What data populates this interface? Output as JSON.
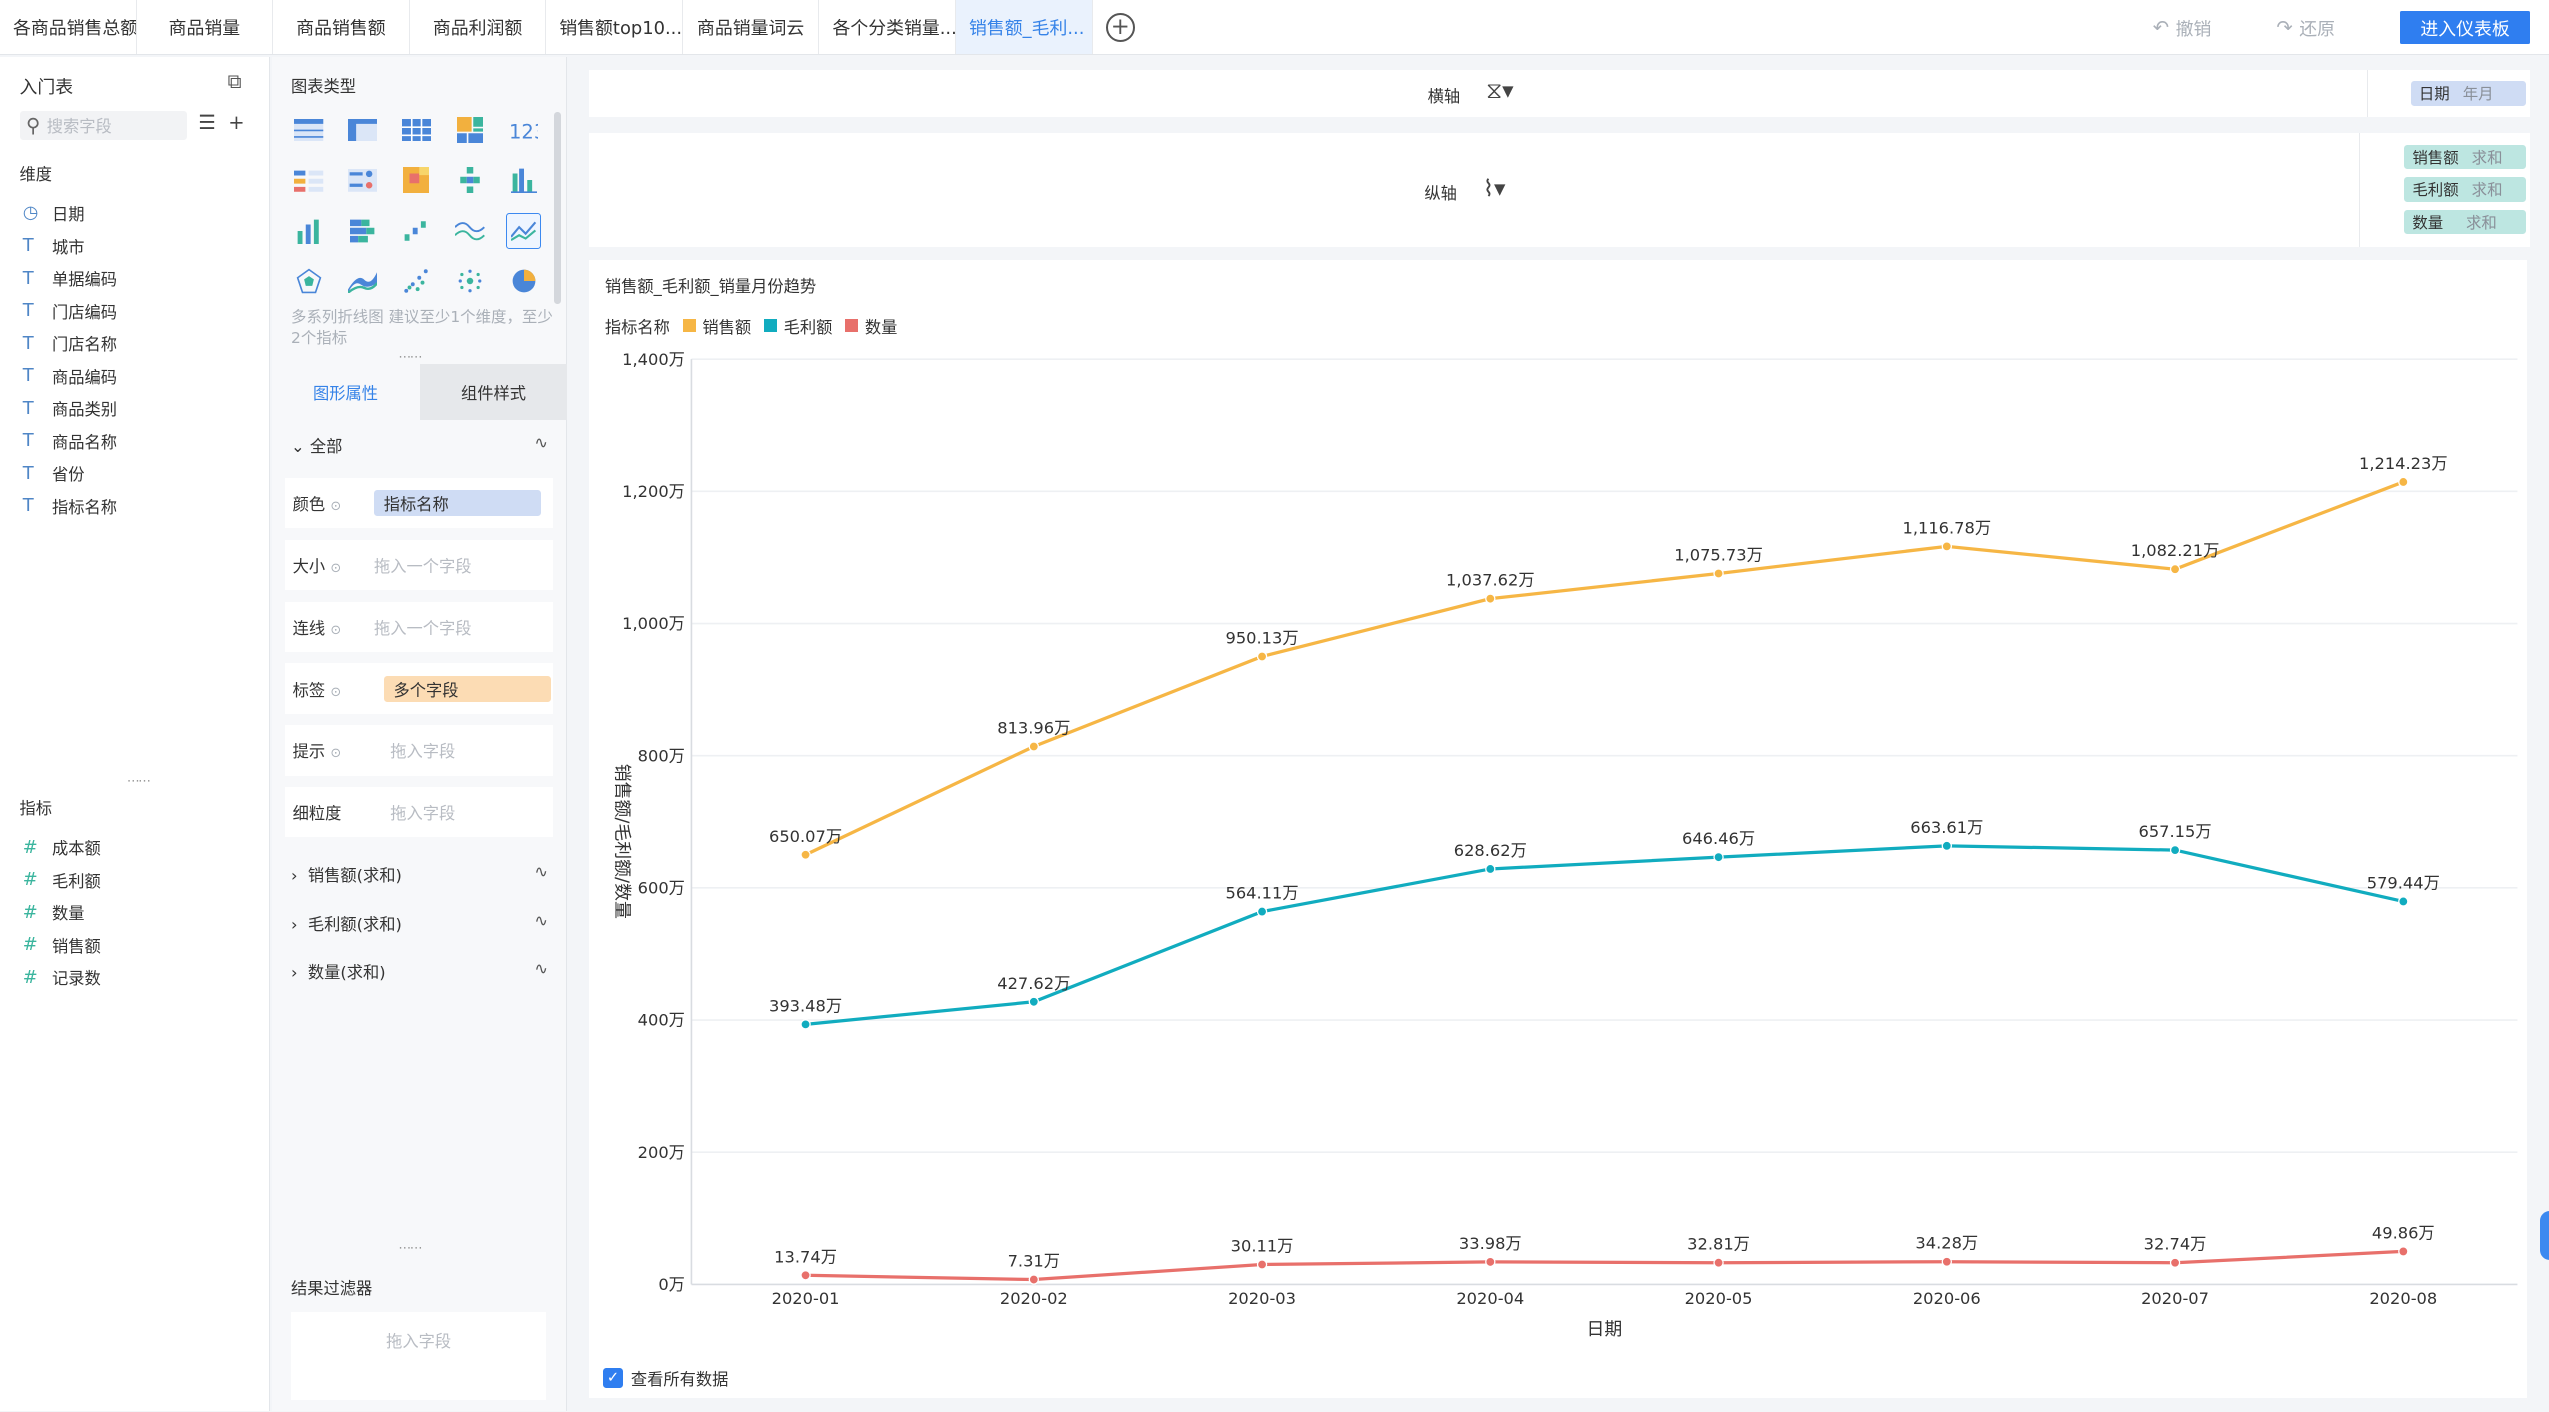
{
  "tabs": [
    {
      "label": "各商品销售总额",
      "active": false
    },
    {
      "label": "商品销量",
      "active": false
    },
    {
      "label": "商品销售额",
      "active": false
    },
    {
      "label": "商品利润额",
      "active": false
    },
    {
      "label": "销售额top10...",
      "active": false
    },
    {
      "label": "商品销量词云",
      "active": false
    },
    {
      "label": "各个分类销量...",
      "active": false
    },
    {
      "label": "销售额_毛利...",
      "active": true
    }
  ],
  "toolbar": {
    "undo": "撤销",
    "redo": "还原",
    "enter_dashboard": "进入仪表板"
  },
  "fields_panel": {
    "table_name": "入门表",
    "search_placeholder": "搜索字段",
    "dimension_title": "维度",
    "dimensions": [
      {
        "icon": "clock-icon",
        "label": "日期"
      },
      {
        "icon": "text-type-icon",
        "label": "城市"
      },
      {
        "icon": "text-type-icon",
        "label": "单据编码"
      },
      {
        "icon": "text-type-icon",
        "label": "门店编码"
      },
      {
        "icon": "text-type-icon",
        "label": "门店名称"
      },
      {
        "icon": "text-type-icon",
        "label": "商品编码"
      },
      {
        "icon": "text-type-icon",
        "label": "商品类别"
      },
      {
        "icon": "text-type-icon",
        "label": "商品名称"
      },
      {
        "icon": "text-type-icon",
        "label": "省份"
      },
      {
        "icon": "text-type-icon",
        "label": "指标名称"
      }
    ],
    "measure_title": "指标",
    "measures": [
      {
        "icon": "hash-icon",
        "label": "成本额"
      },
      {
        "icon": "hash-icon",
        "label": "毛利额"
      },
      {
        "icon": "hash-icon",
        "label": "数量"
      },
      {
        "icon": "hash-icon",
        "label": "销售额"
      },
      {
        "icon": "hash-icon",
        "label": "记录数"
      }
    ]
  },
  "chart_type_panel": {
    "title": "图表类型",
    "hint": "多系列折线图 建议至少1个维度，至少2个指标",
    "tab_shape": "图形属性",
    "tab_style": "组件样式",
    "all_label": "全部",
    "props": [
      {
        "label": "颜色",
        "value": "指标名称",
        "kind": "blue"
      },
      {
        "label": "大小",
        "value": "拖入一个字段",
        "kind": "drag"
      },
      {
        "label": "连线",
        "value": "拖入一个字段",
        "kind": "drag"
      },
      {
        "label": "标签",
        "value": "多个字段",
        "kind": "orange"
      },
      {
        "label": "提示",
        "value": "拖入字段",
        "kind": "drag"
      },
      {
        "label": "细粒度",
        "value": "拖入字段",
        "kind": "drag"
      }
    ],
    "series": [
      "销售额(求和)",
      "毛利额(求和)",
      "数量(求和)"
    ],
    "filter_title": "结果过滤器",
    "filter_placeholder": "拖入字段"
  },
  "axes": {
    "x_label": "横轴",
    "y_label": "纵轴",
    "x_chip": {
      "name": "日期",
      "sub": "年月"
    },
    "y_chips": [
      {
        "name": "销售额",
        "sub": "求和"
      },
      {
        "name": "毛利额",
        "sub": "求和"
      },
      {
        "name": "数量",
        "sub": "求和"
      }
    ]
  },
  "legend_title": "指标名称",
  "view_all_label": "查看所有数据",
  "chart_data": {
    "type": "line",
    "title": "销售额_毛利额_销量月份趋势",
    "xlabel": "日期",
    "ylabel": "销售额/毛利额/数量",
    "categories": [
      "2020-01",
      "2020-02",
      "2020-03",
      "2020-04",
      "2020-05",
      "2020-06",
      "2020-07",
      "2020-08"
    ],
    "y_ticks": [
      "0万",
      "200万",
      "400万",
      "600万",
      "800万",
      "1,000万",
      "1,200万",
      "1,400万"
    ],
    "ylim": [
      0,
      1400
    ],
    "unit": "万",
    "grid": true,
    "legend_position": "top-left",
    "series": [
      {
        "name": "销售额",
        "color": "#f6b645",
        "values": [
          650.07,
          813.96,
          950.13,
          1037.62,
          1075.73,
          1116.78,
          1082.21,
          1214.23
        ],
        "labels": [
          "650.07万",
          "813.96万",
          "950.13万",
          "1,037.62万",
          "1,075.73万",
          "1,116.78万",
          "1,082.21万",
          "1,214.23万"
        ]
      },
      {
        "name": "毛利额",
        "color": "#11acbf",
        "values": [
          393.48,
          427.62,
          564.11,
          628.62,
          646.46,
          663.61,
          657.15,
          579.44
        ],
        "labels": [
          "393.48万",
          "427.62万",
          "564.11万",
          "628.62万",
          "646.46万",
          "663.61万",
          "657.15万",
          "579.44万"
        ]
      },
      {
        "name": "数量",
        "color": "#e8706b",
        "values": [
          13.74,
          7.31,
          30.11,
          33.98,
          32.81,
          34.28,
          32.74,
          49.86
        ],
        "labels": [
          "13.74万",
          "7.31万",
          "30.11万",
          "33.98万",
          "32.81万",
          "34.28万",
          "32.74万",
          "49.86万"
        ]
      }
    ]
  }
}
